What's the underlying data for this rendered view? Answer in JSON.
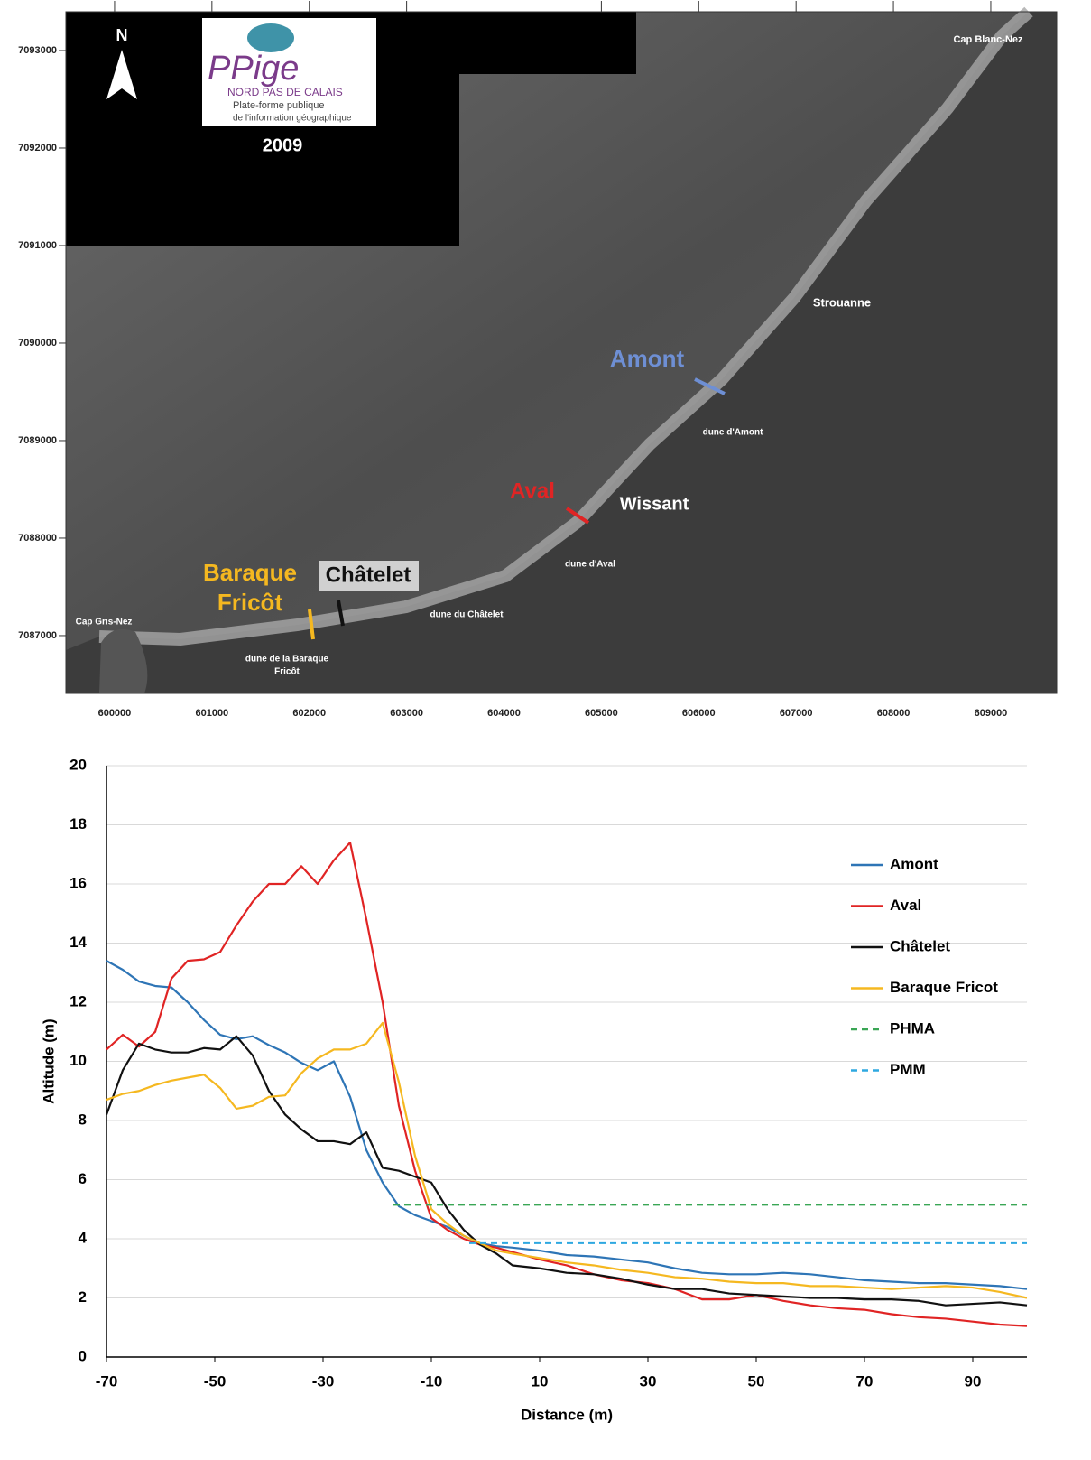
{
  "map": {
    "xlim": [
      599500,
      609677
    ],
    "ylim": [
      7086407,
      7093398
    ],
    "xticks": [
      600000,
      601000,
      602000,
      603000,
      604000,
      605000,
      606000,
      607000,
      608000,
      609000
    ],
    "yticks": [
      7087000,
      7088000,
      7089000,
      7090000,
      7091000,
      7092000,
      7093000
    ],
    "labels": [
      "N",
      "PPige",
      "NORD PAS DE CALAIS",
      "Plate-forme publique",
      "de l'information géographique",
      "2009",
      "Cap Blanc-Nez",
      "Strouanne",
      "Amont",
      "dune d'Amont",
      "Aval",
      "Wissant",
      "dune d'Aval",
      "Baraque",
      "Fricôt",
      "Châtelet",
      "dune du Châtelet",
      "Cap Gris-Nez",
      "dune de la Baraque",
      "Fricôt"
    ]
  },
  "chart_data": {
    "type": "line",
    "xlabel": "Distance (m)",
    "ylabel": "Altitude (m)",
    "xlim": [
      -70,
      100
    ],
    "ylim": [
      0,
      20
    ],
    "xticks": [
      -70,
      -50,
      -30,
      -10,
      10,
      30,
      50,
      70,
      90
    ],
    "yticks": [
      0,
      2,
      4,
      6,
      8,
      10,
      12,
      14,
      16,
      18,
      20
    ],
    "grid": true,
    "legend": "upper right",
    "x": [
      -70,
      -67,
      -64,
      -61,
      -58,
      -55,
      -52,
      -49,
      -46,
      -43,
      -40,
      -37,
      -34,
      -31,
      -28,
      -25,
      -22,
      -19,
      -16,
      -13,
      -10,
      -7,
      -4,
      -1,
      2,
      5,
      10,
      15,
      20,
      25,
      30,
      35,
      40,
      45,
      50,
      55,
      60,
      65,
      70,
      75,
      80,
      85,
      90,
      95,
      100
    ],
    "series": [
      {
        "name": "Amont",
        "color": "#2e75b6",
        "values": [
          13.4,
          13.1,
          12.7,
          12.55,
          12.5,
          12.0,
          11.4,
          10.9,
          10.75,
          10.85,
          10.55,
          10.3,
          9.95,
          9.7,
          10.0,
          8.8,
          7.0,
          5.9,
          5.1,
          4.8,
          4.6,
          4.4,
          4.1,
          3.85,
          3.75,
          3.7,
          3.6,
          3.45,
          3.4,
          3.3,
          3.2,
          3.0,
          2.85,
          2.8,
          2.8,
          2.85,
          2.8,
          2.7,
          2.6,
          2.55,
          2.5,
          2.5,
          2.45,
          2.4,
          2.3
        ]
      },
      {
        "name": "Aval",
        "color": "#e02424",
        "values": [
          10.4,
          10.9,
          10.5,
          11.0,
          12.8,
          13.4,
          13.45,
          13.7,
          14.6,
          15.4,
          16.0,
          16.0,
          16.6,
          16.0,
          16.8,
          17.4,
          14.8,
          12.0,
          8.5,
          6.3,
          4.7,
          4.3,
          4.0,
          3.8,
          3.7,
          3.55,
          3.3,
          3.1,
          2.8,
          2.6,
          2.5,
          2.3,
          1.95,
          1.95,
          2.1,
          1.9,
          1.75,
          1.65,
          1.6,
          1.45,
          1.35,
          1.3,
          1.2,
          1.1,
          1.05
        ]
      },
      {
        "name": "Châtelet",
        "color": "#111111",
        "values": [
          8.2,
          9.7,
          10.6,
          10.4,
          10.3,
          10.3,
          10.45,
          10.4,
          10.85,
          10.2,
          9.0,
          8.2,
          7.7,
          7.3,
          7.3,
          7.2,
          7.6,
          6.4,
          6.3,
          6.1,
          5.9,
          5.0,
          4.3,
          3.8,
          3.5,
          3.1,
          3.0,
          2.85,
          2.8,
          2.65,
          2.45,
          2.3,
          2.3,
          2.15,
          2.1,
          2.05,
          2.0,
          2.0,
          1.95,
          1.95,
          1.9,
          1.75,
          1.8,
          1.85,
          1.75
        ]
      },
      {
        "name": "Baraque Fricot",
        "color": "#f5b820",
        "values": [
          8.7,
          8.9,
          9.0,
          9.2,
          9.35,
          9.45,
          9.55,
          9.1,
          8.4,
          8.5,
          8.8,
          8.85,
          9.6,
          10.1,
          10.4,
          10.4,
          10.6,
          11.3,
          9.3,
          6.8,
          5.0,
          4.5,
          4.1,
          3.85,
          3.6,
          3.5,
          3.35,
          3.2,
          3.1,
          2.95,
          2.85,
          2.7,
          2.65,
          2.55,
          2.5,
          2.5,
          2.4,
          2.4,
          2.35,
          2.3,
          2.35,
          2.4,
          2.35,
          2.2,
          2.0
        ]
      },
      {
        "name": "PHMA",
        "color": "#3aa655",
        "dashed": true,
        "x": [
          -17,
          100
        ],
        "values": [
          5.15,
          5.15
        ]
      },
      {
        "name": "PMM",
        "color": "#2ea8e0",
        "dashed": true,
        "x": [
          -3,
          100
        ],
        "values": [
          3.85,
          3.85
        ]
      }
    ]
  }
}
